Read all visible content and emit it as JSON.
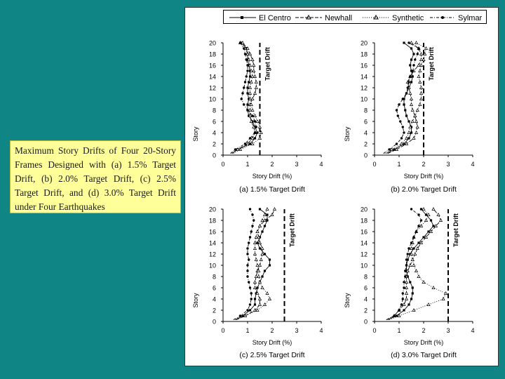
{
  "caption": "Maximum Story Drifts of Four 20-Story Frames Designed with (a) 1.5% Target Drift, (b) 2.0% Target Drift, (c) 2.5% Target Drift, and (d) 3.0% Target Drift under Four Earthquakes",
  "legend": [
    "El Centro",
    "Newhall",
    "Synthetic",
    "Sylmar"
  ],
  "chart_data": [
    {
      "type": "line",
      "id": "a",
      "title": "(a) 1.5% Target Drift",
      "xlabel": "Story Drift (%)",
      "ylabel": "Story",
      "target_label": "Target Drift",
      "target_drift": 1.5,
      "xlim": [
        0,
        4
      ],
      "ylim": [
        0,
        20
      ],
      "xticks": [
        0,
        1,
        2,
        3,
        4
      ],
      "yticks": [
        0,
        2,
        4,
        6,
        8,
        10,
        12,
        14,
        16,
        18,
        20
      ],
      "y": [
        1,
        2,
        3,
        4,
        5,
        6,
        7,
        8,
        9,
        10,
        11,
        12,
        13,
        14,
        15,
        16,
        17,
        18,
        19,
        20
      ],
      "series": [
        {
          "name": "El Centro",
          "values": [
            0.6,
            1.1,
            1.3,
            1.4,
            1.3,
            1.2,
            1.05,
            1.0,
            1.0,
            1.05,
            1.0,
            1.0,
            1.05,
            1.1,
            1.1,
            1.05,
            1.0,
            1.0,
            0.95,
            0.75
          ]
        },
        {
          "name": "Newhall",
          "values": [
            0.6,
            1.0,
            1.2,
            1.3,
            1.25,
            1.15,
            1.1,
            1.1,
            1.1,
            1.2,
            1.3,
            1.35,
            1.35,
            1.3,
            1.25,
            1.25,
            1.2,
            1.1,
            1.0,
            0.8
          ]
        },
        {
          "name": "Synthetic",
          "values": [
            0.7,
            1.2,
            1.5,
            1.55,
            1.5,
            1.4,
            1.3,
            1.2,
            1.15,
            1.1,
            1.1,
            1.1,
            1.15,
            1.2,
            1.15,
            1.1,
            1.05,
            1.0,
            0.9,
            0.7
          ]
        },
        {
          "name": "Sylmar",
          "values": [
            0.5,
            0.9,
            1.1,
            1.3,
            1.35,
            1.3,
            1.2,
            1.0,
            0.85,
            0.75,
            0.8,
            0.85,
            0.9,
            0.95,
            1.0,
            1.0,
            0.95,
            0.9,
            0.85,
            0.7
          ]
        }
      ]
    },
    {
      "type": "line",
      "id": "b",
      "title": "(b) 2.0% Target Drift",
      "xlabel": "Story Drift (%)",
      "ylabel": "Story",
      "target_label": "Target Drift",
      "target_drift": 2.0,
      "xlim": [
        0,
        4
      ],
      "ylim": [
        0,
        20
      ],
      "xticks": [
        0,
        1,
        2,
        3,
        4
      ],
      "yticks": [
        0,
        2,
        4,
        6,
        8,
        10,
        12,
        14,
        16,
        18,
        20
      ],
      "y": [
        1,
        2,
        3,
        4,
        5,
        6,
        7,
        8,
        9,
        10,
        11,
        12,
        13,
        14,
        15,
        16,
        17,
        18,
        19,
        20
      ],
      "series": [
        {
          "name": "El Centro",
          "values": [
            0.8,
            1.2,
            1.4,
            1.5,
            1.5,
            1.4,
            1.3,
            1.25,
            1.2,
            1.2,
            1.3,
            1.4,
            1.5,
            1.55,
            1.5,
            1.45,
            1.5,
            1.6,
            1.5,
            1.2
          ]
        },
        {
          "name": "Newhall",
          "values": [
            0.9,
            1.3,
            1.6,
            1.7,
            1.75,
            1.7,
            1.65,
            1.55,
            1.5,
            1.5,
            1.45,
            1.4,
            1.35,
            1.45,
            1.6,
            1.8,
            1.9,
            1.9,
            1.8,
            1.5
          ]
        },
        {
          "name": "Synthetic",
          "values": [
            0.7,
            1.1,
            1.3,
            1.4,
            1.45,
            1.55,
            1.65,
            1.75,
            1.85,
            1.9,
            1.9,
            1.9,
            1.85,
            1.8,
            1.85,
            1.9,
            2.0,
            2.05,
            2.1,
            1.7
          ]
        },
        {
          "name": "Sylmar",
          "values": [
            0.6,
            0.9,
            1.1,
            1.2,
            1.15,
            1.05,
            0.95,
            0.9,
            1.0,
            1.15,
            1.3,
            1.35,
            1.4,
            1.45,
            1.55,
            1.6,
            1.65,
            1.75,
            1.8,
            1.4
          ]
        }
      ]
    },
    {
      "type": "line",
      "id": "c",
      "title": "(c) 2.5% Target Drift",
      "xlabel": "Story Drift (%)",
      "ylabel": "Story",
      "target_label": "Target Drift",
      "target_drift": 2.5,
      "xlim": [
        0,
        4
      ],
      "ylim": [
        0,
        20
      ],
      "xticks": [
        0,
        1,
        2,
        3,
        4
      ],
      "yticks": [
        0,
        2,
        4,
        6,
        8,
        10,
        12,
        14,
        16,
        18,
        20
      ],
      "y": [
        1,
        2,
        3,
        4,
        5,
        6,
        7,
        8,
        9,
        10,
        11,
        12,
        13,
        14,
        15,
        16,
        17,
        18,
        19,
        20
      ],
      "series": [
        {
          "name": "El Centro",
          "values": [
            0.8,
            1.1,
            1.3,
            1.3,
            1.35,
            1.4,
            1.5,
            1.6,
            1.7,
            1.9,
            1.9,
            1.7,
            1.5,
            1.4,
            1.5,
            1.6,
            1.7,
            1.8,
            1.8,
            1.5
          ]
        },
        {
          "name": "Newhall",
          "values": [
            0.9,
            1.3,
            1.5,
            1.5,
            1.4,
            1.3,
            1.3,
            1.35,
            1.4,
            1.5,
            1.55,
            1.6,
            1.6,
            1.5,
            1.45,
            1.4,
            1.5,
            1.7,
            2.0,
            2.1
          ]
        },
        {
          "name": "Synthetic",
          "values": [
            0.9,
            1.4,
            1.7,
            1.9,
            1.8,
            1.6,
            1.5,
            1.45,
            1.45,
            1.4,
            1.35,
            1.3,
            1.3,
            1.3,
            1.35,
            1.4,
            1.5,
            1.6,
            1.7,
            1.8
          ]
        },
        {
          "name": "Sylmar",
          "values": [
            0.7,
            1.0,
            1.1,
            1.15,
            1.15,
            1.1,
            1.05,
            1.0,
            1.0,
            1.0,
            1.05,
            1.0,
            1.0,
            1.05,
            1.1,
            1.15,
            1.2,
            1.25,
            1.2,
            1.1
          ]
        }
      ]
    },
    {
      "type": "line",
      "id": "d",
      "title": "(d) 3.0% Target Drift",
      "xlabel": "Story Drift (%)",
      "ylabel": "Story",
      "target_label": "Target Drift",
      "target_drift": 3.0,
      "xlim": [
        0,
        4
      ],
      "ylim": [
        0,
        20
      ],
      "xticks": [
        0,
        1,
        2,
        3,
        4
      ],
      "yticks": [
        0,
        2,
        4,
        6,
        8,
        10,
        12,
        14,
        16,
        18,
        20
      ],
      "y": [
        1,
        2,
        3,
        4,
        5,
        6,
        7,
        8,
        9,
        10,
        11,
        12,
        13,
        14,
        15,
        16,
        17,
        18,
        19,
        20
      ],
      "series": [
        {
          "name": "El Centro",
          "values": [
            0.9,
            1.2,
            1.4,
            1.5,
            1.55,
            1.55,
            1.45,
            1.35,
            1.3,
            1.3,
            1.35,
            1.45,
            1.6,
            1.8,
            2.0,
            2.2,
            2.4,
            2.3,
            2.1,
            1.9
          ]
        },
        {
          "name": "Newhall",
          "values": [
            0.8,
            1.0,
            1.2,
            1.3,
            1.3,
            1.3,
            1.3,
            1.3,
            1.35,
            1.45,
            1.55,
            1.65,
            1.75,
            1.9,
            2.1,
            2.3,
            2.5,
            2.7,
            2.6,
            2.4
          ]
        },
        {
          "name": "Synthetic",
          "values": [
            1.0,
            1.6,
            2.2,
            2.8,
            2.9,
            2.4,
            2.0,
            1.8,
            1.7,
            1.6,
            1.55,
            1.5,
            1.5,
            1.55,
            1.6,
            1.7,
            1.9,
            2.1,
            2.2,
            2.0
          ]
        },
        {
          "name": "Sylmar",
          "values": [
            0.8,
            1.0,
            1.1,
            1.15,
            1.15,
            1.2,
            1.2,
            1.25,
            1.25,
            1.3,
            1.3,
            1.35,
            1.4,
            1.5,
            1.6,
            1.7,
            1.8,
            1.9,
            1.8,
            1.5
          ]
        }
      ]
    }
  ]
}
